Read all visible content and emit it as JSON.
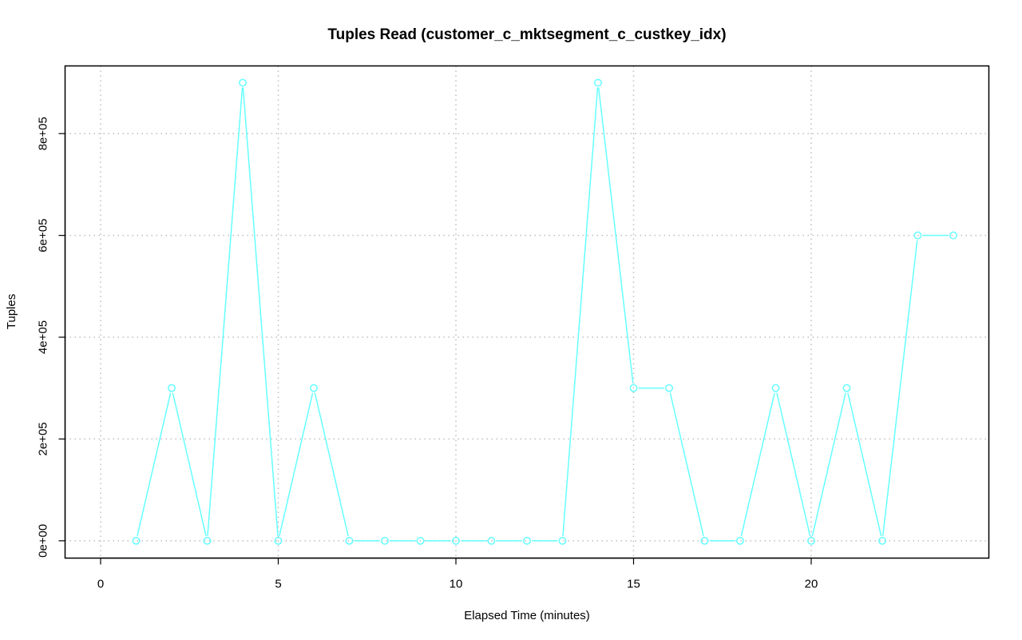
{
  "chart_data": {
    "type": "line",
    "title": "Tuples Read (customer_c_mktsegment_c_custkey_idx)",
    "xlabel": "Elapsed Time (minutes)",
    "ylabel": "Tuples",
    "xlim": [
      -1,
      25
    ],
    "ylim": [
      -34000,
      933000
    ],
    "x_ticks": [
      0,
      5,
      10,
      15,
      20
    ],
    "x_tick_labels": [
      "0",
      "5",
      "10",
      "15",
      "20"
    ],
    "y_ticks": [
      0,
      200000,
      400000,
      600000,
      800000
    ],
    "y_tick_labels": [
      "0e+00",
      "2e+05",
      "4e+05",
      "6e+05",
      "8e+05"
    ],
    "grid": true,
    "series": [
      {
        "color": "#66ffff",
        "marker": "circle",
        "x": [
          1,
          2,
          3,
          4,
          5,
          6,
          7,
          8,
          9,
          10,
          11,
          12,
          13,
          14,
          15,
          16,
          17,
          18,
          19,
          20,
          21,
          22,
          23,
          24
        ],
        "values": [
          0,
          300000,
          0,
          900000,
          0,
          300000,
          0,
          0,
          0,
          0,
          0,
          0,
          0,
          900000,
          300000,
          300000,
          0,
          0,
          300000,
          0,
          300000,
          0,
          600000,
          600000
        ]
      }
    ]
  }
}
